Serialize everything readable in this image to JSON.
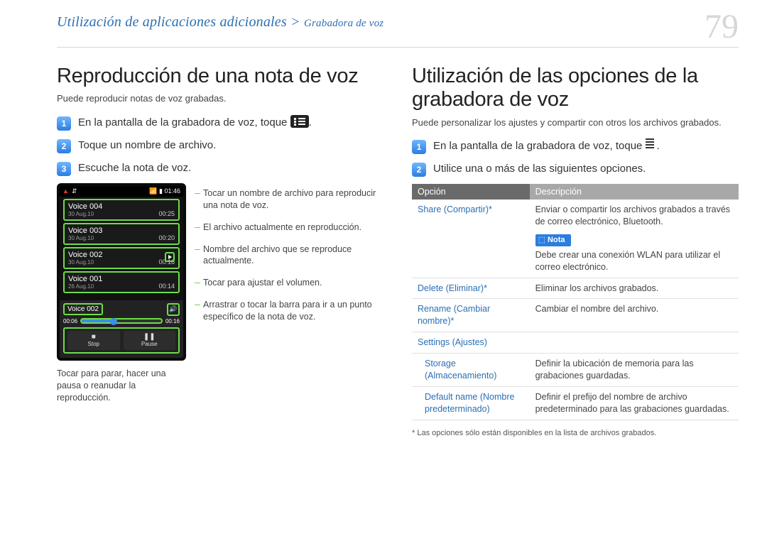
{
  "page_number": "79",
  "breadcrumb_main": "Utilización de aplicaciones adicionales",
  "breadcrumb_sep": " > ",
  "breadcrumb_sub": "Grabadora de voz",
  "left": {
    "heading": "Reproducción de una nota de voz",
    "intro": "Puede reproducir notas de voz grabadas.",
    "step1_pre": "En la pantalla de la grabadora de voz, toque ",
    "step1_post": ".",
    "step2": "Toque un nombre de archivo.",
    "step3": "Escuche la nota de voz.",
    "annotations": {
      "a1": "Tocar un nombre de archivo para reproducir una nota de voz.",
      "a2": "El archivo actualmente en reproducción.",
      "a3": "Nombre del archivo que se reproduce actualmente.",
      "a4": "Tocar para ajustar el volumen.",
      "a5": "Arrastrar o tocar la barra para ir a un punto específico de la nota de voz.",
      "a6": "Tocar para parar, hacer una pausa o reanudar la reproducción."
    },
    "phone": {
      "statusbar_time": "01:46",
      "items": [
        {
          "name": "Voice 004",
          "date": "30 Aug.10",
          "dur": "00:25",
          "playing": false
        },
        {
          "name": "Voice 003",
          "date": "30 Aug.10",
          "dur": "00:20",
          "playing": false
        },
        {
          "name": "Voice 002",
          "date": "30 Aug.10",
          "dur": "00:16",
          "playing": true
        },
        {
          "name": "Voice 001",
          "date": "26 Aug.10",
          "dur": "00:14",
          "playing": false
        }
      ],
      "player_name": "Voice 002",
      "player_elapsed": "00:06",
      "player_total": "00:16",
      "btn_stop": "Stop",
      "btn_pause": "Pause",
      "stop_sym": "■",
      "pause_sym": "❚❚",
      "vol_sym": "🔊"
    }
  },
  "right": {
    "heading": "Utilización de las opciones de la grabadora de voz",
    "intro": "Puede personalizar los ajustes y compartir con otros los archivos grabados.",
    "step1_pre": "En la pantalla de la grabadora de voz, toque ",
    "step1_post": ".",
    "step2": "Utilice una o más de las siguientes opciones.",
    "th_option": "Opción",
    "th_desc": "Descripción",
    "share_label": "Share (Compartir)*",
    "share_desc": "Enviar o compartir los archivos grabados a través de correo electrónico, Bluetooth.",
    "nota_label": "Nota",
    "nota_text": "Debe crear una conexión WLAN para utilizar el correo electrónico.",
    "delete_label": "Delete (Eliminar)*",
    "delete_desc": "Eliminar los archivos grabados.",
    "rename_label": "Rename (Cambiar nombre)*",
    "rename_desc": "Cambiar el nombre del archivo.",
    "settings_label": "Settings (Ajustes)",
    "storage_label": "Storage (Almacenamiento)",
    "storage_desc": "Definir la ubicación de memoria para las grabaciones guardadas.",
    "default_label": "Default name (Nombre predeterminado)",
    "default_desc": "Definir el prefijo del nombre de archivo predeterminado para las grabaciones guardadas.",
    "footnote": "* Las opciones sólo están disponibles en la lista de archivos grabados."
  }
}
